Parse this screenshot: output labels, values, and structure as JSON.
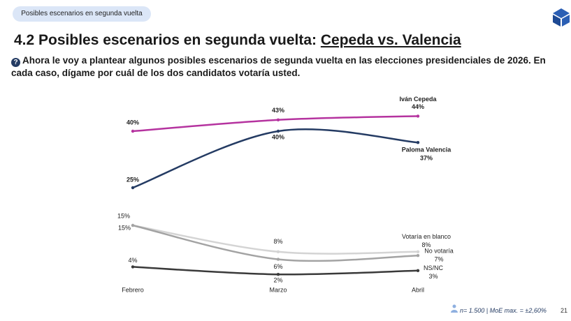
{
  "header": {
    "tag": "Posibles escenarios en segunda vuelta",
    "title": "4.2 Posibles escenarios en segunda vuelta: ",
    "title_underlined": "Cepeda vs. Valencia",
    "question": "Ahora le voy a plantear algunos posibles escenarios de segunda vuelta en las elecciones presidenciales de 2026. En cada caso, dígame por cuál de los dos candidatos votaría usted."
  },
  "chart_data": {
    "type": "line",
    "categories": [
      "Febrero",
      "Marzo",
      "Abril"
    ],
    "series": [
      {
        "name": "Iván Cepeda",
        "color": "#b5339f",
        "values": [
          40,
          43,
          44
        ],
        "value_labels": [
          "40%",
          "43%",
          "44%"
        ]
      },
      {
        "name": "Paloma Valencia",
        "color": "#243b63",
        "values": [
          25,
          40,
          37
        ],
        "value_labels": [
          "25%",
          "40%",
          "37%"
        ]
      },
      {
        "name": "Votaría en blanco",
        "color": "#d4d4d4",
        "values": [
          15,
          8,
          8
        ],
        "value_labels": [
          "15%",
          "8%",
          "8%"
        ]
      },
      {
        "name": "No votaría",
        "color": "#a3a3a3",
        "values": [
          15,
          6,
          7
        ],
        "value_labels": [
          "15%",
          "6%",
          "7%"
        ]
      },
      {
        "name": "NS/NC",
        "color": "#3a3a3a",
        "values": [
          4,
          2,
          3
        ],
        "value_labels": [
          "4%",
          "2%",
          "3%"
        ]
      }
    ]
  },
  "footer": {
    "note": "n= 1.500 | MoE max. = ±2,60%",
    "page": "21"
  }
}
